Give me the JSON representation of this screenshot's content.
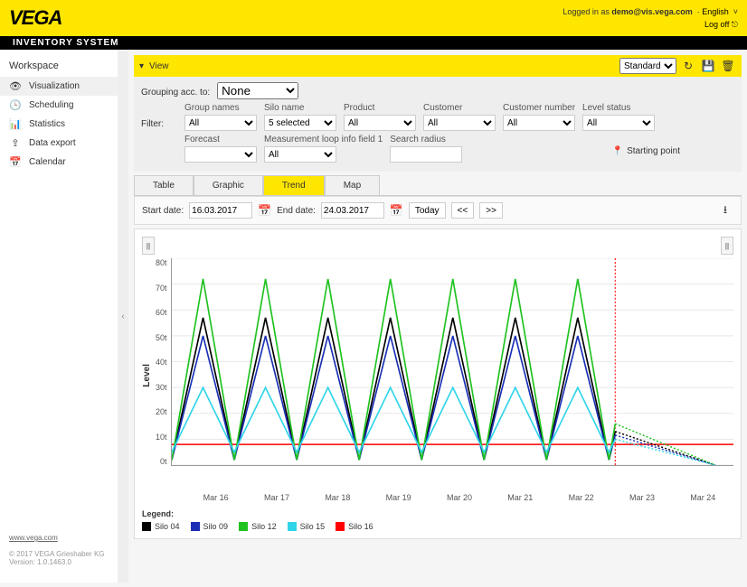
{
  "header": {
    "brand": "VEGA",
    "subtitle": "INVENTORY SYSTEM",
    "logged_in_prefix": "Logged in as ",
    "logged_in_user": "demo@vis.vega.com",
    "language": "English",
    "logoff": "Log off"
  },
  "sidebar": {
    "title": "Workspace",
    "items": [
      {
        "icon": "👁",
        "label": "Visualization",
        "active": true
      },
      {
        "icon": "🕒",
        "label": "Scheduling"
      },
      {
        "icon": "📊",
        "label": "Statistics"
      },
      {
        "icon": "⇪",
        "label": "Data export"
      },
      {
        "icon": "📅",
        "label": "Calendar"
      }
    ],
    "footer_link": "www.vega.com",
    "copyright": "© 2017 VEGA Grieshaber KG",
    "version": "Version: 1.0.1463.0"
  },
  "view": {
    "title": "View",
    "layout_select": "Standard"
  },
  "filters": {
    "grouping_label": "Grouping acc. to:",
    "grouping_value": "None",
    "filter_label": "Filter:",
    "fields": {
      "group_names": {
        "label": "Group names",
        "value": "All"
      },
      "silo_name": {
        "label": "Silo name",
        "value": "5 selected"
      },
      "product": {
        "label": "Product",
        "value": "All"
      },
      "customer": {
        "label": "Customer",
        "value": "All"
      },
      "customer_number": {
        "label": "Customer number",
        "value": "All"
      },
      "level_status": {
        "label": "Level status",
        "value": "All"
      },
      "forecast": {
        "label": "Forecast",
        "value": ""
      },
      "meas_loop": {
        "label": "Measurement loop info field 1",
        "value": "All"
      },
      "search_radius": {
        "label": "Search radius",
        "value": ""
      },
      "starting_point": {
        "label": "Starting point",
        "value": ""
      }
    }
  },
  "tabs": [
    {
      "label": "Table"
    },
    {
      "label": "Graphic"
    },
    {
      "label": "Trend",
      "active": true
    },
    {
      "label": "Map"
    }
  ],
  "date_controls": {
    "start_label": "Start date:",
    "start_value": "16.03.2017",
    "end_label": "End date:",
    "end_value": "24.03.2017",
    "today": "Today",
    "prev": "<<",
    "next": ">>"
  },
  "chart": {
    "type": "line",
    "y_axis_label": "Level",
    "y_ticks": [
      "80t",
      "70t",
      "60t",
      "50t",
      "40t",
      "30t",
      "20t",
      "10t",
      "0t"
    ],
    "ylim": [
      0,
      80
    ],
    "x_ticks": [
      "Mar 16",
      "Mar 17",
      "Mar 18",
      "Mar 19",
      "Mar 20",
      "Mar 21",
      "Mar 22",
      "Mar 23",
      "Mar 24"
    ],
    "n_days": 9,
    "grid_color": "#e8e8e8",
    "background_color": "#ffffff",
    "safety_line": {
      "y": 8,
      "color": "#ff0000"
    },
    "forecast_x": 7.1,
    "forecast_line_color": "#ff0000",
    "series": [
      {
        "name": "Silo 04",
        "color": "#000000",
        "peak": 57,
        "trough": 2
      },
      {
        "name": "Silo 09",
        "color": "#1a2fb5",
        "peak": 50,
        "trough": 2
      },
      {
        "name": "Silo 12",
        "color": "#1fc21f",
        "peak": 72,
        "trough": 2
      },
      {
        "name": "Silo 15",
        "color": "#30d5e8",
        "peak": 30,
        "trough": 5
      },
      {
        "name": "Silo 16",
        "color": "#ff0000",
        "peak": 8,
        "trough": 8
      }
    ],
    "legend_title": "Legend:"
  }
}
